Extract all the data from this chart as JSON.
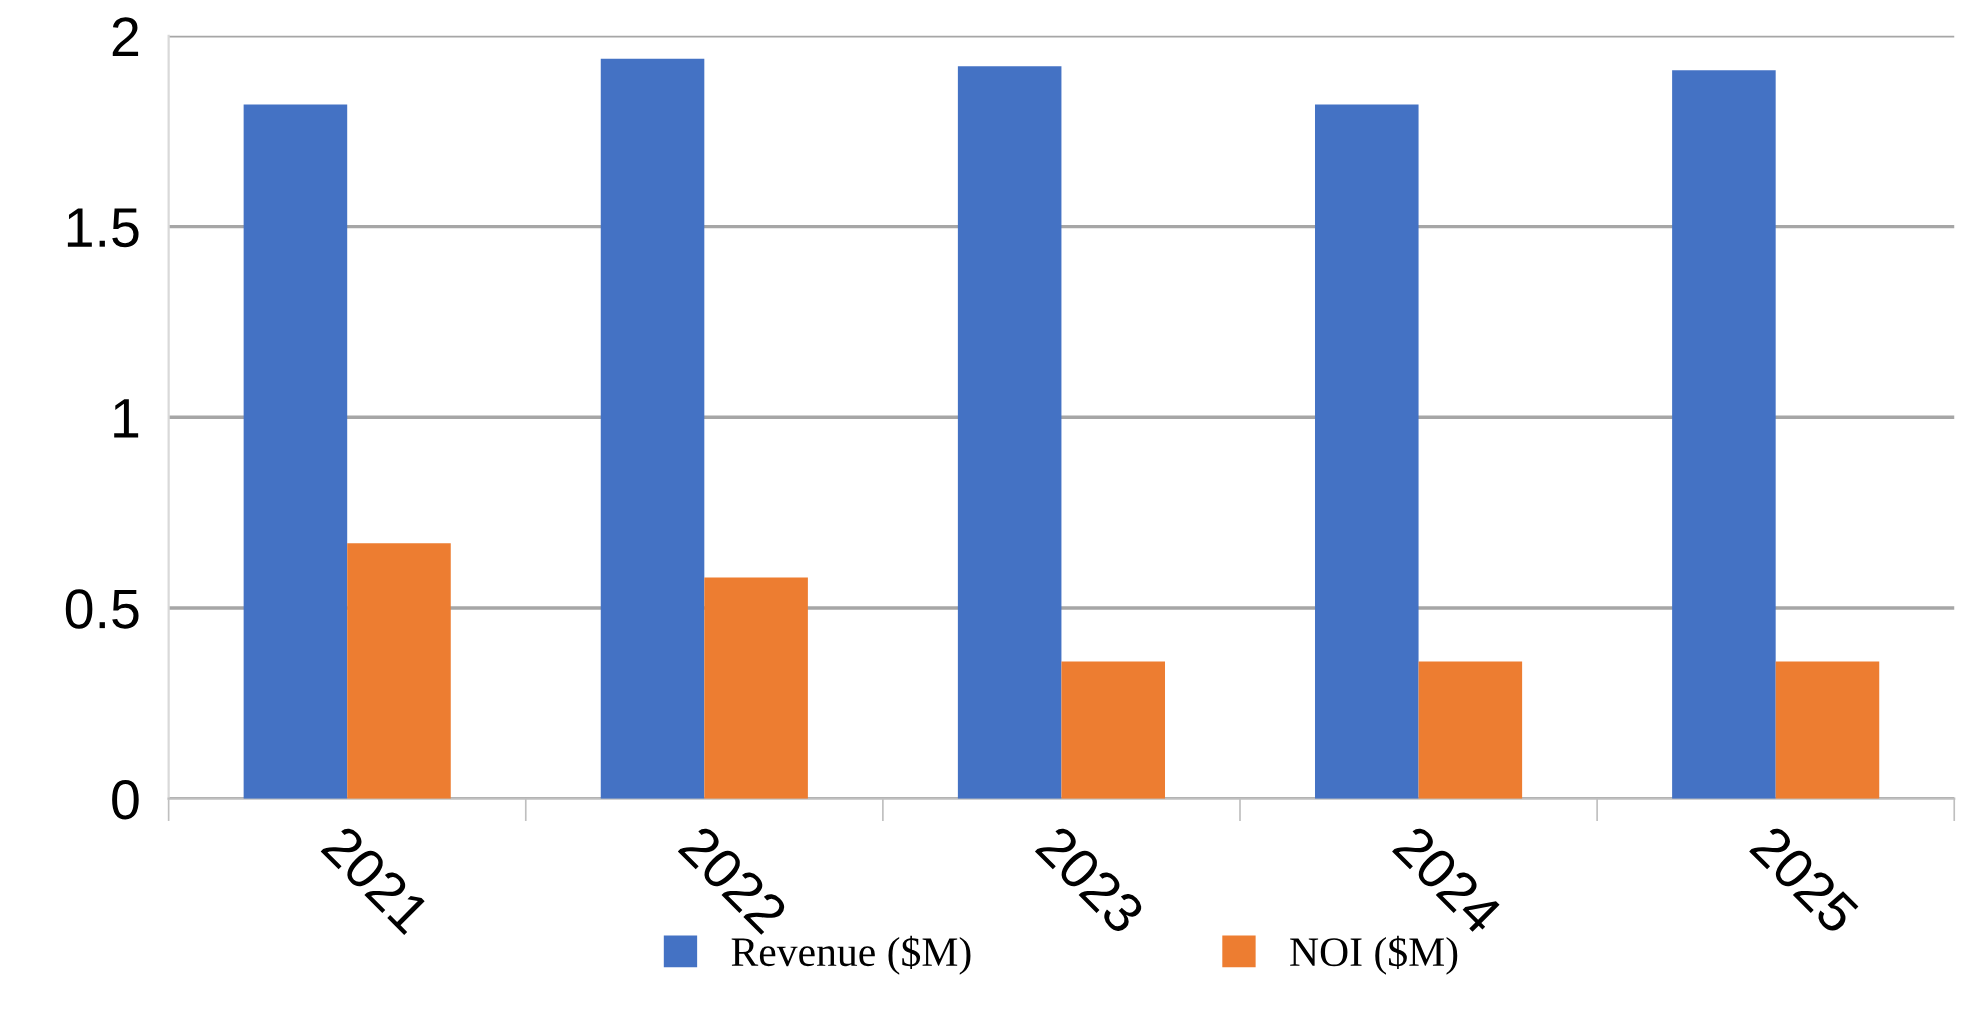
{
  "chart_data": {
    "type": "bar",
    "categories": [
      "2021",
      "2022",
      "2023",
      "2024",
      "2025"
    ],
    "series": [
      {
        "name": "Revenue ($M)",
        "color": "#4472c4",
        "values": [
          1.82,
          1.94,
          1.92,
          1.82,
          1.91
        ]
      },
      {
        "name": "NOI ($M)",
        "color": "#ed7d31",
        "values": [
          0.67,
          0.58,
          0.36,
          0.36,
          0.36
        ]
      }
    ],
    "ylim": [
      0,
      2
    ],
    "yticks": [
      0,
      0.5,
      1,
      1.5,
      2
    ],
    "grid": "y",
    "legend": "bottom"
  }
}
